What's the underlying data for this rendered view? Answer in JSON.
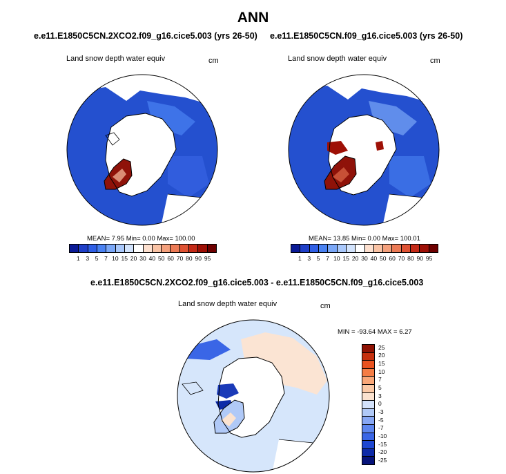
{
  "figure": {
    "title": "ANN"
  },
  "panel_left": {
    "title": "e.e11.E1850C5CN.2XCO2.f09_g16.cice5.003 (yrs 26-50)",
    "variable": "Land snow depth water equiv",
    "units": "cm",
    "stats": "MEAN=   7.95  Min=   0.00  Max= 100.00"
  },
  "panel_right": {
    "title": "e.e11.E1850C5CN.f09_g16.cice5.003 (yrs 26-50)",
    "variable": "Land snow depth water equiv",
    "units": "cm",
    "stats": "MEAN=  13.85  Min=   0.00  Max= 100.01"
  },
  "panel_diff": {
    "title": "e.e11.E1850C5CN.2XCO2.f09_g16.cice5.003 - e.e11.E1850C5CN.f09_g16.cice5.003",
    "variable": "Land snow depth water equiv",
    "units": "cm",
    "stats": "MIN = -93.64 MAX =   6.27"
  },
  "colors": {
    "abs_scale": [
      "#0a1a96",
      "#1f3fc8",
      "#2f5fe6",
      "#4a82f2",
      "#7aa7f7",
      "#a9c8fb",
      "#d2e3fc",
      "#ffffff",
      "#fde0cf",
      "#f9c2a4",
      "#f4a07c",
      "#ec7a55",
      "#df5233",
      "#c42a17",
      "#9e1006",
      "#6e0000"
    ],
    "diff_scale": [
      "#06137a",
      "#0d2aa8",
      "#1e47d2",
      "#3a66e6",
      "#5d86ef",
      "#87a7f4",
      "#b0c9f7",
      "#d3e2fb",
      "#fbe2cf",
      "#fbc9a6",
      "#f9a778",
      "#f47d45",
      "#e9521f",
      "#c6300e",
      "#8f1203"
    ],
    "land_base": "#2450cf",
    "ice_cap": "#8f1209",
    "diff_land": "#d6e6fb",
    "diff_eurasia": "#fbe4d3",
    "diff_neg": "#1a3ab8"
  },
  "chart_data": [
    {
      "type": "heatmap",
      "projection": "north polar stereographic",
      "title": "e.e11.E1850C5CN.2XCO2.f09_g16.cice5.003 (yrs 26-50)",
      "variable": "Land snow depth water equiv",
      "units": "cm",
      "stats": {
        "mean": 7.95,
        "min": 0.0,
        "max": 100.0
      },
      "colorbar_levels": [
        1,
        3,
        5,
        7,
        10,
        15,
        20,
        30,
        40,
        50,
        60,
        70,
        80,
        90,
        95
      ]
    },
    {
      "type": "heatmap",
      "projection": "north polar stereographic",
      "title": "e.e11.E1850C5CN.f09_g16.cice5.003 (yrs 26-50)",
      "variable": "Land snow depth water equiv",
      "units": "cm",
      "stats": {
        "mean": 13.85,
        "min": 0.0,
        "max": 100.01
      },
      "colorbar_levels": [
        1,
        3,
        5,
        7,
        10,
        15,
        20,
        30,
        40,
        50,
        60,
        70,
        80,
        90,
        95
      ]
    },
    {
      "type": "heatmap",
      "projection": "north polar stereographic",
      "title": "e.e11.E1850C5CN.2XCO2.f09_g16.cice5.003 - e.e11.E1850C5CN.f09_g16.cice5.003",
      "variable": "Land snow depth water equiv",
      "units": "cm",
      "stats": {
        "min": -93.64,
        "max": 6.27
      },
      "colorbar_levels": [
        25,
        20,
        15,
        10,
        7,
        5,
        3,
        0,
        -3,
        -5,
        -7,
        -10,
        -15,
        -20,
        -25
      ]
    }
  ]
}
